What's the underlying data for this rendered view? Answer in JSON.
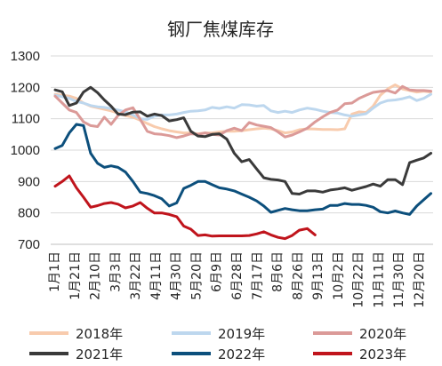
{
  "chart_data": {
    "type": "line",
    "title": "钢厂焦煤库存",
    "xlabel": "",
    "ylabel": "",
    "ylim": [
      700,
      1300
    ],
    "yticks": [
      700,
      800,
      900,
      1000,
      1100,
      1200,
      1300
    ],
    "grid": "horizontal",
    "legend_position": "bottom",
    "x_tick_labels": [
      "1月1日",
      "1月21日",
      "2月10日",
      "3月3日",
      "3月22日",
      "4月11日",
      "4月30日",
      "5月20日",
      "6月9日",
      "6月28日",
      "7月17日",
      "8月6日",
      "8月26日",
      "9月13日",
      "10月2日",
      "10月22日",
      "11月11日",
      "11月30日",
      "12月20日"
    ],
    "x": [
      "01-01",
      "01-08",
      "01-15",
      "01-22",
      "01-29",
      "02-05",
      "02-12",
      "02-19",
      "02-26",
      "03-05",
      "03-12",
      "03-19",
      "03-26",
      "04-02",
      "04-09",
      "04-16",
      "04-23",
      "04-30",
      "05-07",
      "05-14",
      "05-21",
      "05-28",
      "06-04",
      "06-11",
      "06-18",
      "06-25",
      "07-02",
      "07-09",
      "07-16",
      "07-23",
      "07-30",
      "08-06",
      "08-13",
      "08-20",
      "08-27",
      "09-03",
      "09-10",
      "09-17",
      "09-24",
      "10-01",
      "10-08",
      "10-15",
      "10-22",
      "10-29",
      "11-05",
      "11-12",
      "11-19",
      "11-26",
      "12-03",
      "12-10",
      "12-17",
      "12-24",
      "12-31"
    ],
    "series": [
      {
        "name": "2018年",
        "color": "#F8CBAD",
        "values": [
          1178,
          1175,
          1172,
          1165,
          1150,
          1140,
          1135,
          1130,
          1125,
          1118,
          1110,
          1105,
          1095,
          1085,
          1075,
          1068,
          1062,
          1058,
          1055,
          1055,
          1052,
          1055,
          1055,
          1058,
          1060,
          1060,
          1062,
          1065,
          1068,
          1070,
          1068,
          1062,
          1055,
          1058,
          1065,
          1068,
          1067,
          1066,
          1066,
          1065,
          1068,
          1115,
          1122,
          1120,
          1140,
          1175,
          1195,
          1208,
          1195,
          1190,
          1185,
          1188,
          1185
        ]
      },
      {
        "name": "2019年",
        "color": "#BDD7EE",
        "values": [
          1175,
          1170,
          1165,
          1155,
          1150,
          1142,
          1138,
          1136,
          1132,
          1128,
          1122,
          1112,
          1100,
          1098,
          1108,
          1112,
          1112,
          1115,
          1120,
          1124,
          1125,
          1128,
          1136,
          1133,
          1138,
          1134,
          1145,
          1144,
          1140,
          1142,
          1125,
          1120,
          1124,
          1120,
          1128,
          1134,
          1130,
          1124,
          1120,
          1118,
          1112,
          1108,
          1112,
          1116,
          1134,
          1150,
          1158,
          1160,
          1164,
          1170,
          1158,
          1165,
          1178
        ]
      },
      {
        "name": "2020年",
        "color": "#DB9A98",
        "values": [
          1172,
          1150,
          1128,
          1120,
          1090,
          1078,
          1075,
          1105,
          1082,
          1110,
          1128,
          1135,
          1098,
          1060,
          1052,
          1050,
          1046,
          1040,
          1045,
          1052,
          1050,
          1055,
          1050,
          1048,
          1062,
          1070,
          1062,
          1088,
          1080,
          1076,
          1072,
          1058,
          1042,
          1048,
          1058,
          1070,
          1090,
          1106,
          1120,
          1128,
          1148,
          1150,
          1165,
          1175,
          1184,
          1187,
          1190,
          1182,
          1203,
          1192,
          1190,
          1190,
          1188
        ]
      },
      {
        "name": "2021年",
        "color": "#3A3A3A",
        "values": [
          1192,
          1186,
          1142,
          1150,
          1185,
          1200,
          1183,
          1160,
          1140,
          1115,
          1113,
          1121,
          1122,
          1108,
          1115,
          1110,
          1093,
          1097,
          1103,
          1060,
          1045,
          1043,
          1050,
          1052,
          1035,
          990,
          963,
          970,
          940,
          912,
          907,
          905,
          900,
          862,
          860,
          870,
          870,
          866,
          873,
          876,
          880,
          872,
          878,
          884,
          892,
          885,
          906,
          906,
          890,
          960,
          968,
          975,
          990
        ]
      },
      {
        "name": "2022年",
        "color": "#0C4F7C",
        "values": [
          1005,
          1015,
          1055,
          1082,
          1078,
          990,
          958,
          945,
          950,
          945,
          930,
          900,
          866,
          862,
          855,
          845,
          822,
          832,
          878,
          888,
          900,
          900,
          890,
          880,
          876,
          870,
          860,
          850,
          838,
          822,
          802,
          808,
          814,
          810,
          807,
          807,
          810,
          812,
          824,
          824,
          830,
          827,
          827,
          824,
          818,
          804,
          800,
          806,
          800,
          795,
          822,
          842,
          862
        ]
      },
      {
        "name": "2023年",
        "color": "#C0141C",
        "values": [
          885,
          900,
          918,
          880,
          850,
          818,
          823,
          830,
          833,
          828,
          816,
          822,
          833,
          815,
          800,
          800,
          795,
          788,
          758,
          748,
          728,
          730,
          726,
          727,
          727,
          727,
          727,
          728,
          733,
          740,
          730,
          722,
          718,
          728,
          745,
          750,
          730,
          null,
          null,
          null,
          null,
          null,
          null,
          null,
          null,
          null,
          null,
          null,
          null,
          null,
          null,
          null,
          null
        ]
      }
    ]
  }
}
